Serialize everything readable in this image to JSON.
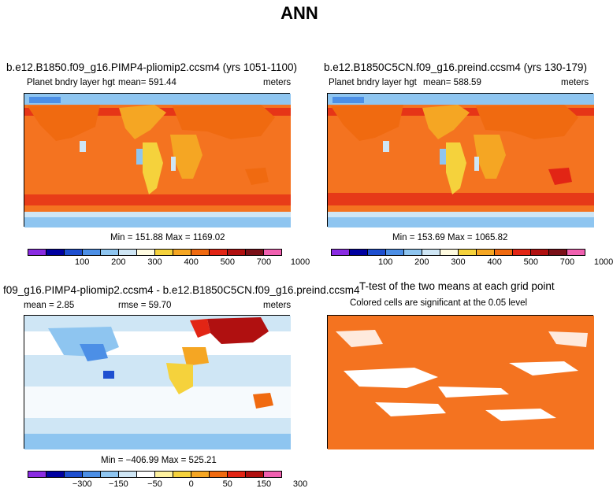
{
  "title": "ANN",
  "colors": {
    "abs_scale": [
      "#8a2be2",
      "#0000a0",
      "#1e4fd0",
      "#4c8fe6",
      "#8ec5f0",
      "#cfe6f5",
      "#fffbe0",
      "#f5d23c",
      "#f5a623",
      "#f06a10",
      "#e22515",
      "#b01010",
      "#7a1018",
      "#f060b0"
    ],
    "diff_scale": [
      "#8a2be2",
      "#0000a0",
      "#1e4fd0",
      "#4c8fe6",
      "#8ec5f0",
      "#cfe6f5",
      "#ffffff",
      "#fff2a0",
      "#f5d23c",
      "#f5a623",
      "#f06a10",
      "#e22515",
      "#b01010",
      "#f060b0"
    ],
    "ocean_main": "#f47320",
    "ocean_ttest": "#f47320"
  },
  "panels": [
    {
      "title": "b.e12.B1850.f09_g16.PIMP4-pliomip2.ccsm4 (yrs 1051-1100)",
      "variable": "Planet bndry layer hgt",
      "mean": "mean= 591.44",
      "units": "meters",
      "minmax": "Min = 151.88 Max = 1169.02",
      "ticks": [
        "100",
        "200",
        "300",
        "400",
        "500",
        "700",
        "1000"
      ]
    },
    {
      "title": "b.e12.B1850C5CN.f09_g16.preind.ccsm4 (yrs 130-179)",
      "variable": "Planet bndry layer hgt",
      "mean": "mean= 588.59",
      "units": "meters",
      "minmax": "Min = 153.69 Max = 1065.82",
      "ticks": [
        "100",
        "200",
        "300",
        "400",
        "500",
        "700",
        "1000"
      ]
    },
    {
      "title": "f09_g16.PIMP4-pliomip2.ccsm4 - b.e12.B1850C5CN.f09_g16.preind.ccsm4",
      "mean": "mean =    2.85",
      "rmse": "rmse =  59.70",
      "units": "meters",
      "minmax": "Min = −406.99 Max = 525.21",
      "ticks": [
        "−300",
        "−150",
        "−50",
        "0",
        "50",
        "150",
        "300"
      ]
    },
    {
      "title": "T-test of the two means at each grid point",
      "subtitle": "Colored cells are significant at the 0.05 level"
    }
  ]
}
